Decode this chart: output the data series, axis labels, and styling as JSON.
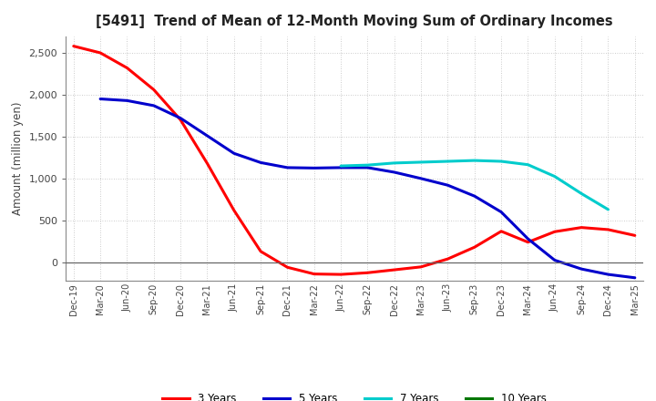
{
  "title": "[5491]  Trend of Mean of 12-Month Moving Sum of Ordinary Incomes",
  "ylabel": "Amount (million yen)",
  "background_color": "#ffffff",
  "grid_color": "#aaaaaa",
  "x_labels": [
    "Dec-19",
    "Mar-20",
    "Jun-20",
    "Sep-20",
    "Dec-20",
    "Mar-21",
    "Jun-21",
    "Sep-21",
    "Dec-21",
    "Mar-22",
    "Jun-22",
    "Sep-22",
    "Dec-22",
    "Mar-23",
    "Jun-23",
    "Sep-23",
    "Dec-23",
    "Mar-24",
    "Jun-24",
    "Sep-24",
    "Dec-24",
    "Mar-25"
  ],
  "ylim": [
    -220,
    2700
  ],
  "yticks": [
    0,
    500,
    1000,
    1500,
    2000,
    2500
  ],
  "series": {
    "3 Years": {
      "color": "#ff0000",
      "data": [
        2580,
        2500,
        2320,
        2060,
        1700,
        1180,
        620,
        130,
        -60,
        -140,
        -145,
        -125,
        -90,
        -55,
        40,
        180,
        370,
        240,
        365,
        415,
        390,
        320
      ]
    },
    "5 Years": {
      "color": "#0000cc",
      "data": [
        null,
        1950,
        1930,
        1870,
        1720,
        1510,
        1300,
        1190,
        1130,
        1125,
        1130,
        1130,
        1075,
        1000,
        920,
        790,
        600,
        280,
        25,
        -80,
        -145,
        -185
      ]
    },
    "7 Years": {
      "color": "#00cccc",
      "data": [
        null,
        null,
        null,
        null,
        null,
        null,
        null,
        null,
        null,
        null,
        1150,
        1160,
        1185,
        1195,
        1205,
        1215,
        1205,
        1165,
        1025,
        820,
        630,
        null
      ]
    },
    "10 Years": {
      "color": "#007700",
      "data": [
        null,
        null,
        null,
        null,
        null,
        null,
        null,
        null,
        null,
        null,
        null,
        null,
        null,
        null,
        null,
        null,
        null,
        null,
        null,
        null,
        null,
        null
      ]
    }
  },
  "legend_entries": [
    "3 Years",
    "5 Years",
    "7 Years",
    "10 Years"
  ],
  "legend_colors": [
    "#ff0000",
    "#0000cc",
    "#00cccc",
    "#007700"
  ]
}
